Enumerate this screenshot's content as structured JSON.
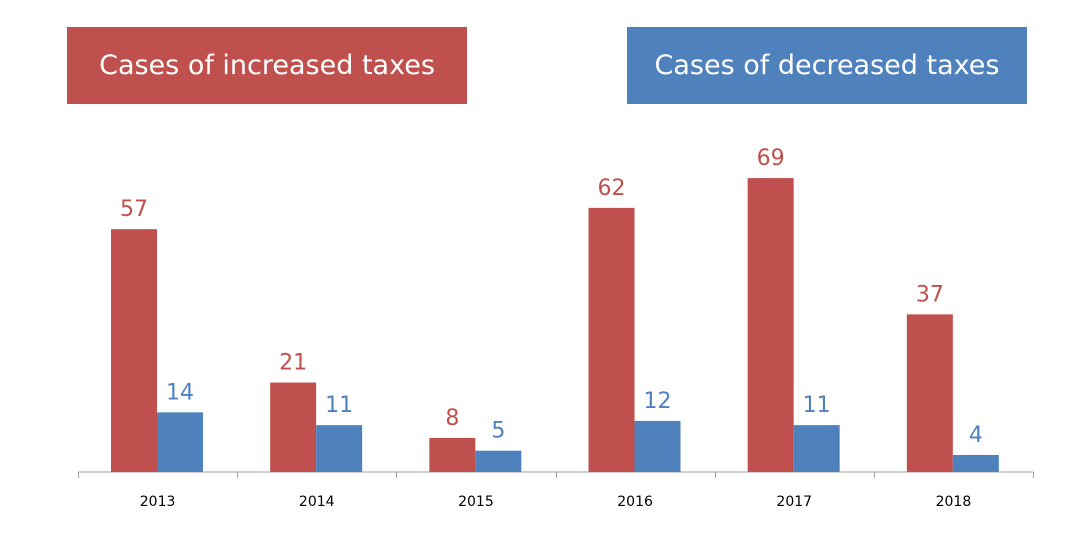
{
  "legend": {
    "increased_label": "Cases of increased taxes",
    "decreased_label": "Cases of decreased taxes"
  },
  "colors": {
    "increased": "#c0504d",
    "decreased": "#4f81bd",
    "axis": "#a0a0a0"
  },
  "chart_data": {
    "type": "bar",
    "categories": [
      "2013",
      "2014",
      "2015",
      "2016",
      "2017",
      "2018"
    ],
    "series": [
      {
        "name": "Cases of increased taxes",
        "values": [
          57,
          21,
          8,
          62,
          69,
          37
        ]
      },
      {
        "name": "Cases of decreased taxes",
        "values": [
          14,
          11,
          5,
          12,
          11,
          4
        ]
      }
    ],
    "title": "",
    "xlabel": "",
    "ylabel": "",
    "ylim": [
      0,
      75
    ],
    "grid": false,
    "legend_position": "top"
  }
}
